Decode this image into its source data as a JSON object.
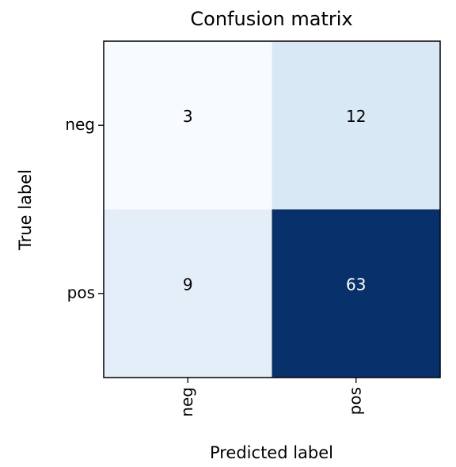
{
  "chart_data": {
    "type": "heatmap",
    "title": "Confusion matrix",
    "x_label": "Predicted label",
    "y_label": "True label",
    "x_categories": [
      "neg",
      "pos"
    ],
    "y_categories": [
      "neg",
      "pos"
    ],
    "values": [
      [
        3,
        12
      ],
      [
        9,
        63
      ]
    ],
    "colormap": "Blues"
  }
}
